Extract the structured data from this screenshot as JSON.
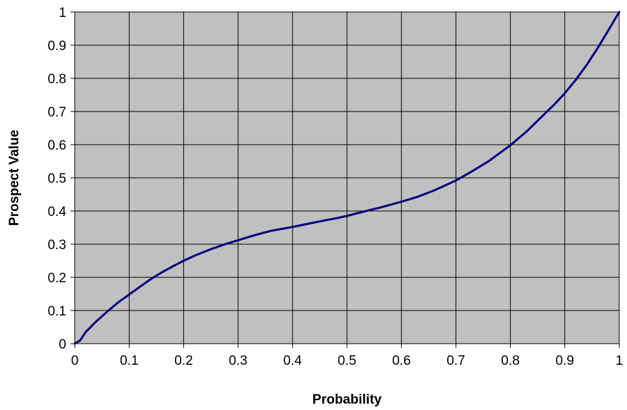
{
  "chart_data": {
    "type": "line",
    "title": "",
    "xlabel": "Probability",
    "ylabel": "Prospect Value",
    "xlim": [
      0,
      1
    ],
    "ylim": [
      0,
      1
    ],
    "x_ticks": [
      "0",
      "0.1",
      "0.2",
      "0.3",
      "0.4",
      "0.5",
      "0.6",
      "0.7",
      "0.8",
      "0.9",
      "1"
    ],
    "y_ticks": [
      "0",
      "0.1",
      "0.2",
      "0.3",
      "0.4",
      "0.5",
      "0.6",
      "0.7",
      "0.8",
      "0.9",
      "1"
    ],
    "grid": true,
    "legend": "none",
    "colors": {
      "plot_background": "#c0c0c0",
      "line": "#000080",
      "grid": "#000000"
    },
    "series": [
      {
        "x": [
          0,
          0.01,
          0.02,
          0.04,
          0.06,
          0.08,
          0.1,
          0.12,
          0.14,
          0.16,
          0.18,
          0.2,
          0.22,
          0.25,
          0.28,
          0.3,
          0.33,
          0.36,
          0.4,
          0.43,
          0.46,
          0.48,
          0.5,
          0.53,
          0.56,
          0.6,
          0.63,
          0.66,
          0.7,
          0.73,
          0.76,
          0.8,
          0.83,
          0.86,
          0.88,
          0.9,
          0.92,
          0.94,
          0.96,
          0.98,
          1.0
        ],
        "values": [
          0,
          0.01,
          0.035,
          0.068,
          0.097,
          0.125,
          0.148,
          0.172,
          0.195,
          0.215,
          0.233,
          0.25,
          0.265,
          0.285,
          0.302,
          0.312,
          0.327,
          0.34,
          0.352,
          0.362,
          0.372,
          0.378,
          0.385,
          0.398,
          0.41,
          0.428,
          0.443,
          0.462,
          0.492,
          0.52,
          0.55,
          0.598,
          0.64,
          0.688,
          0.72,
          0.755,
          0.795,
          0.84,
          0.89,
          0.945,
          1.0
        ]
      }
    ]
  }
}
